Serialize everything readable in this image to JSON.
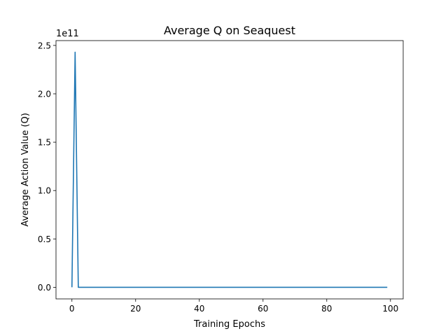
{
  "chart_data": {
    "type": "line",
    "title": "Average Q on Seaquest",
    "xlabel": "Training Epochs",
    "ylabel": "Average Action Value (Q)",
    "offset_text": "1e11",
    "xlim": [
      -5,
      104
    ],
    "ylim": [
      -0.12,
      2.55
    ],
    "x_ticks": [
      0,
      20,
      40,
      60,
      80,
      100
    ],
    "y_ticks": [
      0.0,
      0.5,
      1.0,
      1.5,
      2.0,
      2.5
    ],
    "y_tick_labels": [
      "0.0",
      "0.5",
      "1.0",
      "1.5",
      "2.0",
      "2.5"
    ],
    "grid": false,
    "series": [
      {
        "color": "#1f77b4",
        "x": [
          0,
          1,
          2,
          3,
          4,
          5,
          6,
          7,
          8,
          9,
          10,
          11,
          12,
          13,
          14,
          15,
          16,
          17,
          18,
          19,
          20,
          21,
          22,
          23,
          24,
          25,
          26,
          27,
          28,
          29,
          30,
          31,
          32,
          33,
          34,
          35,
          36,
          37,
          38,
          39,
          40,
          41,
          42,
          43,
          44,
          45,
          46,
          47,
          48,
          49,
          50,
          51,
          52,
          53,
          54,
          55,
          56,
          57,
          58,
          59,
          60,
          61,
          62,
          63,
          64,
          65,
          66,
          67,
          68,
          69,
          70,
          71,
          72,
          73,
          74,
          75,
          76,
          77,
          78,
          79,
          80,
          81,
          82,
          83,
          84,
          85,
          86,
          87,
          88,
          89,
          90,
          91,
          92,
          93,
          94,
          95,
          96,
          97,
          98,
          99
        ],
        "y": [
          0.0,
          2.43,
          0.0,
          0.0,
          0.0,
          0.0,
          0.0,
          0.0,
          0.0,
          0.0,
          0.0,
          0.0,
          0.0,
          0.0,
          0.0,
          0.0,
          0.0,
          0.0,
          0.0,
          0.0,
          0.0,
          0.0,
          0.0,
          0.0,
          0.0,
          0.0,
          0.0,
          0.0,
          0.0,
          0.0,
          0.0,
          0.0,
          0.0,
          0.0,
          0.0,
          0.0,
          0.0,
          0.0,
          0.0,
          0.0,
          0.0,
          0.0,
          0.0,
          0.0,
          0.0,
          0.0,
          0.0,
          0.0,
          0.0,
          0.0,
          0.0,
          0.0,
          0.0,
          0.0,
          0.0,
          0.0,
          0.0,
          0.0,
          0.0,
          0.0,
          0.0,
          0.0,
          0.0,
          0.0,
          0.0,
          0.0,
          0.0,
          0.0,
          0.0,
          0.0,
          0.0,
          0.0,
          0.0,
          0.0,
          0.0,
          0.0,
          0.0,
          0.0,
          0.0,
          0.0,
          0.0,
          0.0,
          0.0,
          0.0,
          0.0,
          0.0,
          0.0,
          0.0,
          0.0,
          0.0,
          0.0,
          0.0,
          0.0,
          0.0,
          0.0,
          0.0,
          0.0,
          0.0,
          0.0,
          0.0
        ]
      }
    ]
  }
}
